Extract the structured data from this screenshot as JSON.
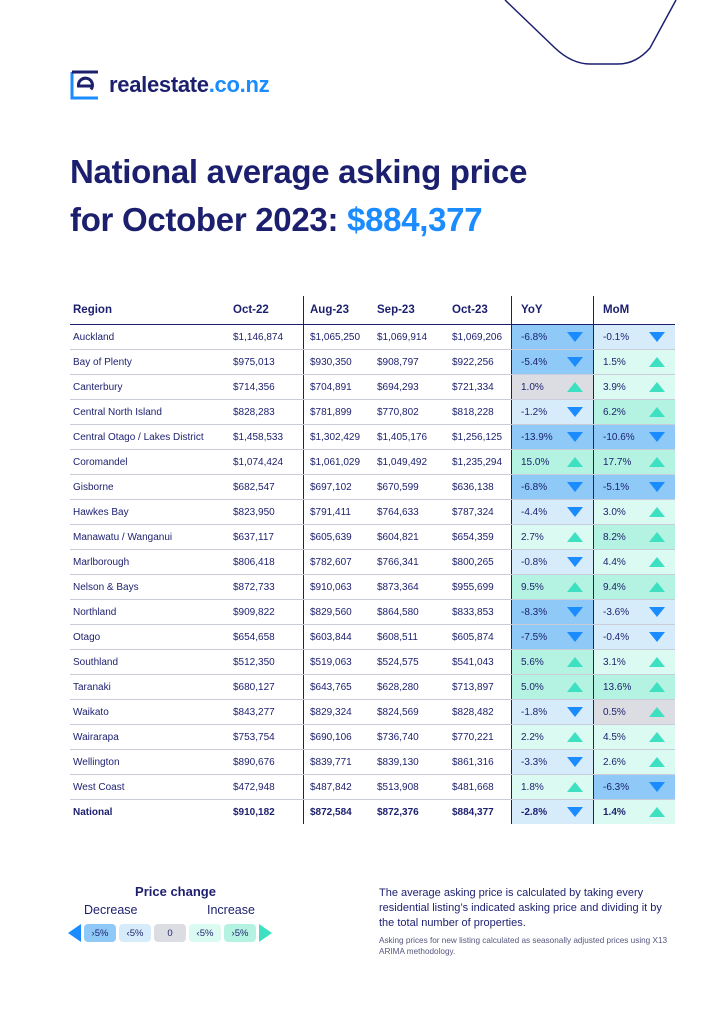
{
  "brand": {
    "name": "realestate",
    "tld": ".co.nz"
  },
  "title": {
    "line1": "National average asking price",
    "line2_prefix": "for October 2023:",
    "price": "$884,377"
  },
  "table": {
    "headers": [
      "Region",
      "Oct-22",
      "Aug-23",
      "Sep-23",
      "Oct-23",
      "YoY",
      "MoM"
    ],
    "rows": [
      {
        "region": "Auckland",
        "oct22": "$1,146,874",
        "aug23": "$1,065,250",
        "sep23": "$1,069,914",
        "oct23": "$1,069,206",
        "yoy": "-6.8%",
        "mom": "-0.1%"
      },
      {
        "region": "Bay of Plenty",
        "oct22": "$975,013",
        "aug23": "$930,350",
        "sep23": "$908,797",
        "oct23": "$922,256",
        "yoy": "-5.4%",
        "mom": "1.5%"
      },
      {
        "region": "Canterbury",
        "oct22": "$714,356",
        "aug23": "$704,891",
        "sep23": "$694,293",
        "oct23": "$721,334",
        "yoy": "1.0%",
        "mom": "3.9%"
      },
      {
        "region": "Central North Island",
        "oct22": "$828,283",
        "aug23": "$781,899",
        "sep23": "$770,802",
        "oct23": "$818,228",
        "yoy": "-1.2%",
        "mom": "6.2%"
      },
      {
        "region": "Central Otago / Lakes District",
        "oct22": "$1,458,533",
        "aug23": "$1,302,429",
        "sep23": "$1,405,176",
        "oct23": "$1,256,125",
        "yoy": "-13.9%",
        "mom": "-10.6%"
      },
      {
        "region": "Coromandel",
        "oct22": "$1,074,424",
        "aug23": "$1,061,029",
        "sep23": "$1,049,492",
        "oct23": "$1,235,294",
        "yoy": "15.0%",
        "mom": "17.7%"
      },
      {
        "region": "Gisborne",
        "oct22": "$682,547",
        "aug23": "$697,102",
        "sep23": "$670,599",
        "oct23": "$636,138",
        "yoy": "-6.8%",
        "mom": "-5.1%"
      },
      {
        "region": "Hawkes Bay",
        "oct22": "$823,950",
        "aug23": "$791,411",
        "sep23": "$764,633",
        "oct23": "$787,324",
        "yoy": "-4.4%",
        "mom": "3.0%"
      },
      {
        "region": "Manawatu / Wanganui",
        "oct22": "$637,117",
        "aug23": "$605,639",
        "sep23": "$604,821",
        "oct23": "$654,359",
        "yoy": "2.7%",
        "mom": "8.2%"
      },
      {
        "region": "Marlborough",
        "oct22": "$806,418",
        "aug23": "$782,607",
        "sep23": "$766,341",
        "oct23": "$800,265",
        "yoy": "-0.8%",
        "mom": "4.4%"
      },
      {
        "region": "Nelson & Bays",
        "oct22": "$872,733",
        "aug23": "$910,063",
        "sep23": "$873,364",
        "oct23": "$955,699",
        "yoy": "9.5%",
        "mom": "9.4%"
      },
      {
        "region": "Northland",
        "oct22": "$909,822",
        "aug23": "$829,560",
        "sep23": "$864,580",
        "oct23": "$833,853",
        "yoy": "-8.3%",
        "mom": "-3.6%"
      },
      {
        "region": "Otago",
        "oct22": "$654,658",
        "aug23": "$603,844",
        "sep23": "$608,511",
        "oct23": "$605,874",
        "yoy": "-7.5%",
        "mom": "-0.4%"
      },
      {
        "region": "Southland",
        "oct22": "$512,350",
        "aug23": "$519,063",
        "sep23": "$524,575",
        "oct23": "$541,043",
        "yoy": "5.6%",
        "mom": "3.1%"
      },
      {
        "region": "Taranaki",
        "oct22": "$680,127",
        "aug23": "$643,765",
        "sep23": "$628,280",
        "oct23": "$713,897",
        "yoy": "5.0%",
        "mom": "13.6%"
      },
      {
        "region": "Waikato",
        "oct22": "$843,277",
        "aug23": "$829,324",
        "sep23": "$824,569",
        "oct23": "$828,482",
        "yoy": "-1.8%",
        "mom": "0.5%"
      },
      {
        "region": "Wairarapa",
        "oct22": "$753,754",
        "aug23": "$690,106",
        "sep23": "$736,740",
        "oct23": "$770,221",
        "yoy": "2.2%",
        "mom": "4.5%"
      },
      {
        "region": "Wellington",
        "oct22": "$890,676",
        "aug23": "$839,771",
        "sep23": "$839,130",
        "oct23": "$861,316",
        "yoy": "-3.3%",
        "mom": "2.6%"
      },
      {
        "region": "West Coast",
        "oct22": "$472,948",
        "aug23": "$487,842",
        "sep23": "$513,908",
        "oct23": "$481,668",
        "yoy": "1.8%",
        "mom": "-6.3%"
      },
      {
        "region": "National",
        "oct22": "$910,182",
        "aug23": "$872,584",
        "sep23": "$872,376",
        "oct23": "$884,377",
        "yoy": "-2.8%",
        "mom": "1.4%"
      }
    ]
  },
  "legend": {
    "title": "Price change",
    "decrease": "Decrease",
    "increase": "Increase",
    "chips": [
      {
        "label": "›5%",
        "color": "#8ec9f7"
      },
      {
        "label": "‹5%",
        "color": "#d6ecfb"
      },
      {
        "label": "0",
        "color": "#dcdde2"
      },
      {
        "label": "‹5%",
        "color": "#dbfaf2"
      },
      {
        "label": "›5%",
        "color": "#b4f2e1"
      }
    ]
  },
  "notes": {
    "main": "The average asking price is calculated by taking every residential listing’s indicated asking price and dividing it by the total number of properties.",
    "sub": "Asking prices for new listing calculated as seasonally adjusted prices using X13 ARIMA methodology."
  },
  "colors": {
    "navy": "#1c1f6e",
    "blue": "#1a8cff",
    "teal": "#3de0c0"
  }
}
